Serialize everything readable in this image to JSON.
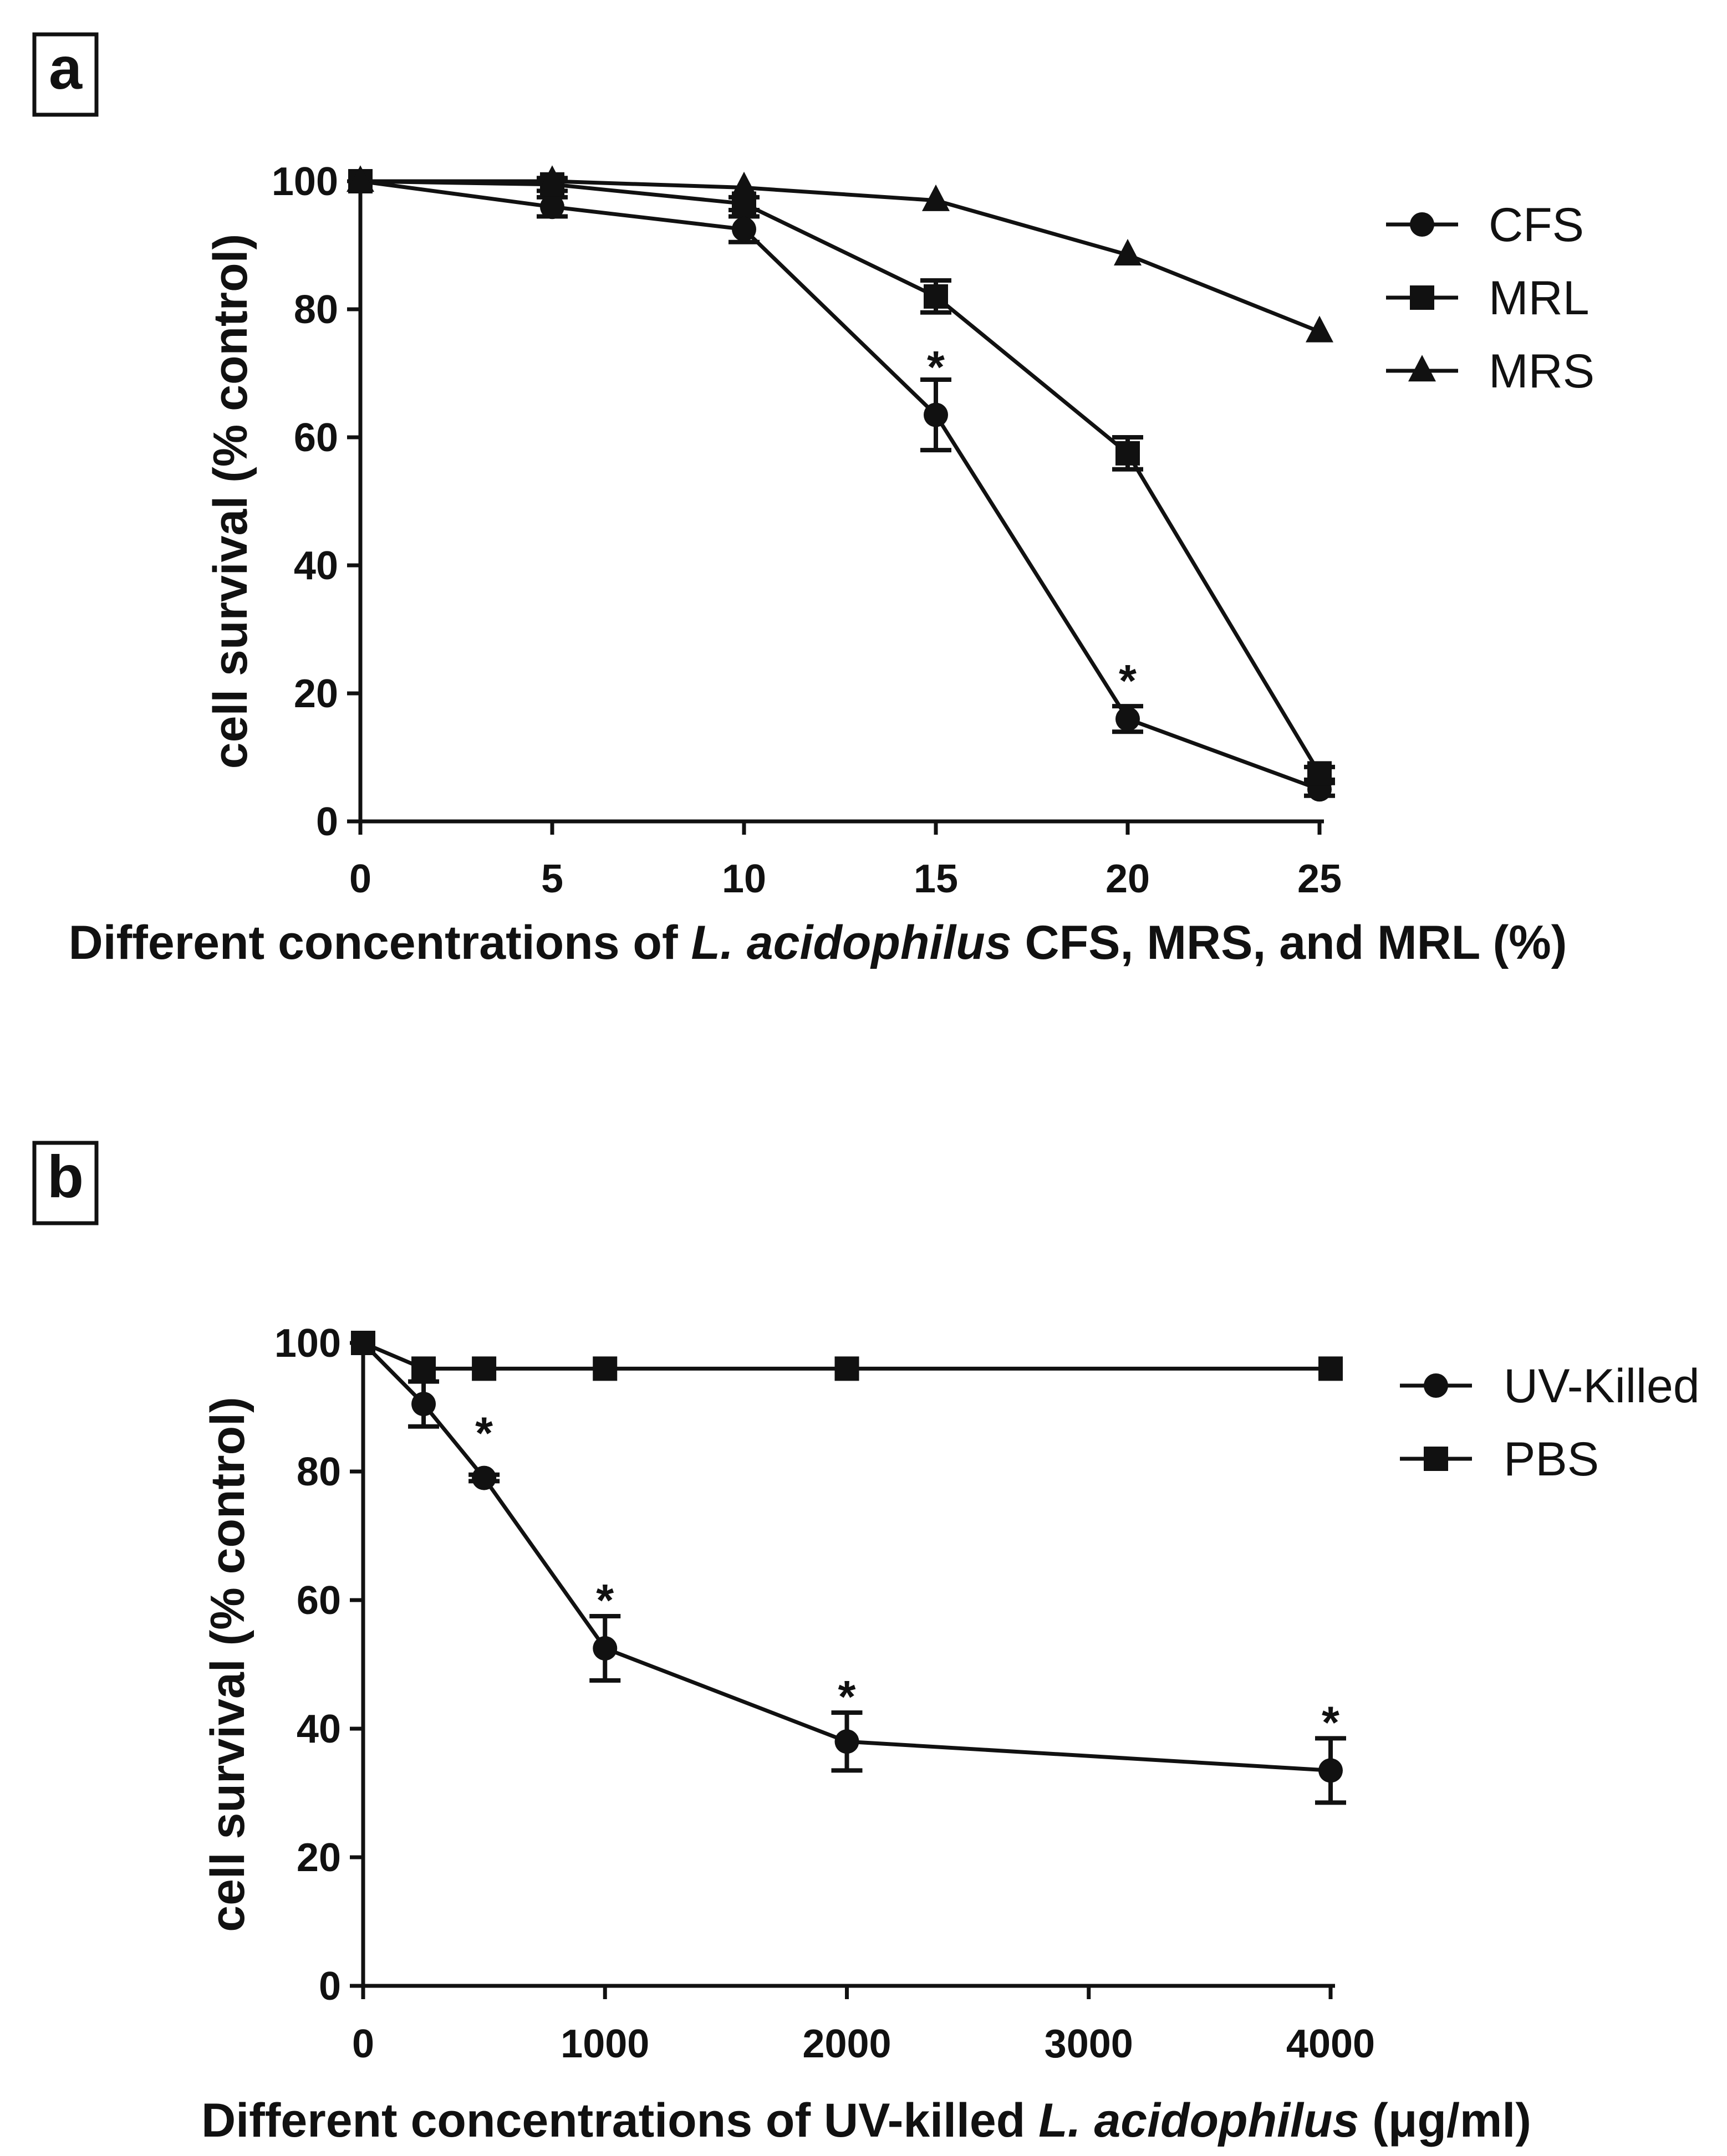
{
  "chart_data": [
    {
      "panel_label": "a",
      "type": "line",
      "title": "",
      "ylabel": "cell survival (% control)",
      "xlabel_parts": [
        {
          "text": "Different concentrations of ",
          "italic": false
        },
        {
          "text": "L. acidophilus",
          "italic": true
        },
        {
          "text": " CFS, MRS, and MRL (%)",
          "italic": false
        }
      ],
      "xlim": [
        0,
        25
      ],
      "ylim": [
        0,
        100
      ],
      "xticks": [
        0,
        5,
        10,
        15,
        20,
        25
      ],
      "yticks": [
        0,
        20,
        40,
        60,
        80,
        100
      ],
      "legend_position": "top-right",
      "series": [
        {
          "name": "CFS",
          "marker": "circle",
          "x": [
            0,
            5,
            10,
            15,
            20,
            25
          ],
          "y": [
            100,
            96,
            92.5,
            63.5,
            16,
            5
          ],
          "err": [
            0,
            1.5,
            2,
            5.5,
            2,
            1
          ]
        },
        {
          "name": "MRL",
          "marker": "square",
          "x": [
            0,
            5,
            10,
            15,
            20,
            25
          ],
          "y": [
            100,
            99.5,
            96.5,
            82,
            57.5,
            7.5
          ],
          "err": [
            0,
            1,
            1,
            2.5,
            2.5,
            1
          ]
        },
        {
          "name": "MRS",
          "marker": "triangle",
          "x": [
            0,
            5,
            10,
            15,
            20,
            25
          ],
          "y": [
            100,
            100,
            99,
            97,
            88.5,
            76.5
          ],
          "err": [
            0,
            0,
            0,
            0,
            0,
            0
          ]
        }
      ],
      "annotations": [
        {
          "text": "*",
          "x": 15,
          "y": 72
        },
        {
          "text": "*",
          "x": 20,
          "y": 23
        }
      ]
    },
    {
      "panel_label": "b",
      "type": "line",
      "title": "",
      "ylabel": "cell survival (% control)",
      "xlabel_parts": [
        {
          "text": "Different concentrations of UV-killed ",
          "italic": false
        },
        {
          "text": "L. acidophilus",
          "italic": true
        },
        {
          "text": " (μg/ml)",
          "italic": false
        }
      ],
      "xlim": [
        0,
        4000
      ],
      "ylim": [
        0,
        100
      ],
      "xticks": [
        0,
        1000,
        2000,
        3000,
        4000
      ],
      "yticks": [
        0,
        20,
        40,
        60,
        80,
        100
      ],
      "legend_position": "top-right",
      "series": [
        {
          "name": "UV-Killed",
          "marker": "circle",
          "x": [
            0,
            250,
            500,
            1000,
            2000,
            4000
          ],
          "y": [
            100,
            90.5,
            79,
            52.5,
            38,
            33.5
          ],
          "err": [
            0,
            3.5,
            0.5,
            5,
            4.5,
            5
          ]
        },
        {
          "name": "PBS",
          "marker": "square",
          "x": [
            0,
            250,
            500,
            1000,
            2000,
            4000
          ],
          "y": [
            100,
            96,
            96,
            96,
            96,
            96
          ],
          "err": [
            0,
            0,
            0,
            0,
            0,
            0
          ]
        }
      ],
      "annotations": [
        {
          "text": "*",
          "x": 500,
          "y": 87
        },
        {
          "text": "*",
          "x": 1000,
          "y": 61
        },
        {
          "text": "*",
          "x": 2000,
          "y": 46
        },
        {
          "text": "*",
          "x": 4000,
          "y": 42
        }
      ]
    }
  ]
}
